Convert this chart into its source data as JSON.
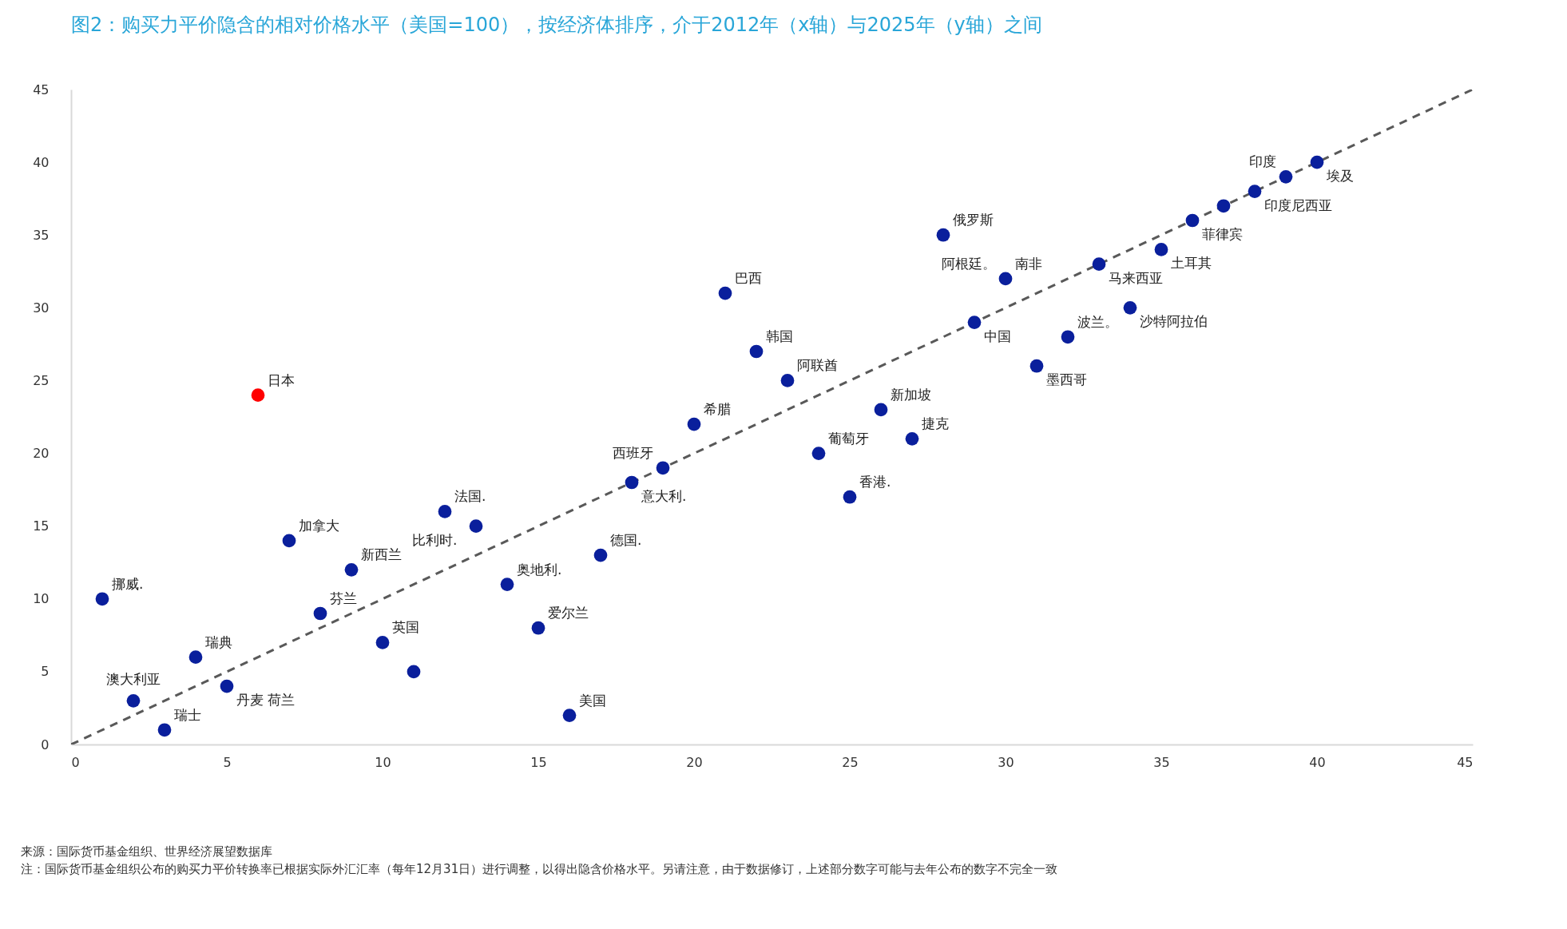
{
  "chart_data": {
    "type": "scatter",
    "title": "图2：购买力平价隐含的相对价格水平（美国=100），按经济体排序，介于2012年（x轴）与2025年（y轴）之间",
    "xlim": [
      0,
      45
    ],
    "xticks": [
      0,
      5,
      10,
      15,
      20,
      25,
      30,
      35,
      40,
      45
    ],
    "ylim": [
      0,
      45
    ],
    "yticks": [
      0,
      5,
      10,
      15,
      20,
      25,
      30,
      35,
      40,
      45
    ],
    "grid": false,
    "series": [
      {
        "type": "line",
        "color": "#595959",
        "line_style": "dashed",
        "x": [
          0,
          45
        ],
        "values": [
          0,
          45
        ]
      },
      {
        "color": "#0a1f9c",
        "x": [
          1,
          2,
          3,
          4,
          5,
          7,
          8,
          9,
          10,
          11,
          12,
          13,
          14,
          15,
          16,
          17,
          18,
          19,
          20,
          21,
          22,
          23,
          24,
          25,
          26,
          27,
          28,
          29,
          30,
          31,
          32,
          33,
          34,
          35,
          36,
          37,
          38,
          39,
          40
        ],
        "values": [
          10,
          3,
          1,
          6,
          4,
          14,
          9,
          12,
          7,
          5,
          16,
          15,
          11,
          8,
          2,
          13,
          18,
          19,
          22,
          31,
          27,
          25,
          20,
          17,
          23,
          21,
          35,
          29,
          32,
          26,
          28,
          33,
          30,
          34,
          36,
          37,
          38,
          39,
          40
        ]
      },
      {
        "color": "#ff0000",
        "x": [
          6
        ],
        "values": [
          24
        ]
      }
    ],
    "annotations": [
      {
        "text": "挪威.",
        "x": 1,
        "y": 10
      },
      {
        "text": "澳大利亚",
        "x": 2,
        "y": 3
      },
      {
        "text": "瑞士",
        "x": 3,
        "y": 1
      },
      {
        "text": "瑞典",
        "x": 4,
        "y": 6
      },
      {
        "text": "丹麦 荷兰",
        "x": 5,
        "y": 4
      },
      {
        "text": "日本",
        "x": 6,
        "y": 24
      },
      {
        "text": "加拿大",
        "x": 7,
        "y": 14
      },
      {
        "text": "芬兰",
        "x": 8,
        "y": 9
      },
      {
        "text": "新西兰",
        "x": 9,
        "y": 12
      },
      {
        "text": "英国",
        "x": 10,
        "y": 7
      },
      {
        "text": "法国.",
        "x": 12,
        "y": 16
      },
      {
        "text": "比利时.",
        "x": 13,
        "y": 15
      },
      {
        "text": "奥地利.",
        "x": 14,
        "y": 11
      },
      {
        "text": "爱尔兰",
        "x": 15,
        "y": 8
      },
      {
        "text": "美国",
        "x": 16,
        "y": 2
      },
      {
        "text": "德国.",
        "x": 17,
        "y": 13
      },
      {
        "text": "意大利.",
        "x": 18,
        "y": 18
      },
      {
        "text": "西班牙",
        "x": 19,
        "y": 19
      },
      {
        "text": "希腊",
        "x": 20,
        "y": 22
      },
      {
        "text": "巴西",
        "x": 21,
        "y": 31
      },
      {
        "text": "韩国",
        "x": 22,
        "y": 27
      },
      {
        "text": "阿联酋",
        "x": 23,
        "y": 25
      },
      {
        "text": "葡萄牙",
        "x": 24,
        "y": 20
      },
      {
        "text": "香港.",
        "x": 25,
        "y": 17
      },
      {
        "text": "新加坡",
        "x": 26,
        "y": 23
      },
      {
        "text": "捷克",
        "x": 27,
        "y": 21
      },
      {
        "text": "俄罗斯",
        "x": 28,
        "y": 35
      },
      {
        "text": "中国",
        "x": 29,
        "y": 29
      },
      {
        "text": "南非",
        "x": 30,
        "y": 32
      },
      {
        "text": "阿根廷。",
        "x": 30,
        "y": 32
      },
      {
        "text": "墨西哥",
        "x": 31,
        "y": 26
      },
      {
        "text": "波兰。",
        "x": 32,
        "y": 28
      },
      {
        "text": "马来西亚",
        "x": 33,
        "y": 33
      },
      {
        "text": "沙特阿拉伯",
        "x": 34,
        "y": 30
      },
      {
        "text": "土耳其",
        "x": 35,
        "y": 34
      },
      {
        "text": "菲律宾",
        "x": 36,
        "y": 36
      },
      {
        "text": "印度尼西亚",
        "x": 38,
        "y": 38
      },
      {
        "text": "印度",
        "x": 39,
        "y": 39
      },
      {
        "text": "埃及",
        "x": 40,
        "y": 40
      },
      "来源：国际货币基金组织、世界经济展望数据库",
      "注：国际货币基金组织公布的购买力平价转换率已根据实际外汇汇率（每年12月31日）进行调整，以得出隐含价格水平。另请注意，由于数据修订，上述部分数字可能与去年公布的数字不完全一致"
    ]
  }
}
